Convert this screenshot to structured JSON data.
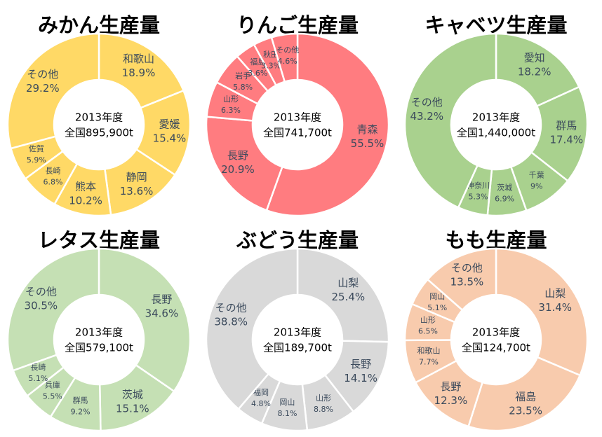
{
  "chart_data": [
    {
      "type": "donut",
      "title": "みかん生産量",
      "center_text": [
        "2013年度",
        "全国895,900t"
      ],
      "color": "#FFD966",
      "slices": [
        {
          "name": "和歌山",
          "value": 18.9,
          "label": "18.9%"
        },
        {
          "name": "愛媛",
          "value": 15.4,
          "label": "15.4%"
        },
        {
          "name": "静岡",
          "value": 13.6,
          "label": "13.6%"
        },
        {
          "name": "熊本",
          "value": 10.2,
          "label": "10.2%"
        },
        {
          "name": "長崎",
          "value": 6.8,
          "label": "6.8%"
        },
        {
          "name": "佐賀",
          "value": 5.9,
          "label": "5.9%"
        },
        {
          "name": "その他",
          "value": 29.2,
          "label": "29.2%"
        }
      ]
    },
    {
      "type": "donut",
      "title": "りんご生産量",
      "center_text": [
        "2013年度",
        "全国741,700t"
      ],
      "color": "#FF7C80",
      "slices": [
        {
          "name": "青森",
          "value": 55.5,
          "label": "55.5%"
        },
        {
          "name": "長野",
          "value": 20.9,
          "label": "20.9%"
        },
        {
          "name": "山形",
          "value": 6.3,
          "label": "6.3%"
        },
        {
          "name": "岩手",
          "value": 5.8,
          "label": "5.8%"
        },
        {
          "name": "福島",
          "value": 3.6,
          "label": "3.6%"
        },
        {
          "name": "秋田",
          "value": 3.3,
          "label": "3.3%"
        },
        {
          "name": "その他",
          "value": 4.6,
          "label": "4.6%"
        }
      ]
    },
    {
      "type": "donut",
      "title": "キャベツ生産量",
      "center_text": [
        "2013年度",
        "全国1,440,000t"
      ],
      "color": "#A9D18E",
      "slices": [
        {
          "name": "愛知",
          "value": 18.2,
          "label": "18.2%"
        },
        {
          "name": "群馬",
          "value": 17.4,
          "label": "17.4%"
        },
        {
          "name": "千葉",
          "value": 9,
          "label": "9%"
        },
        {
          "name": "茨城",
          "value": 6.9,
          "label": "6.9%"
        },
        {
          "name": "神奈川",
          "value": 5.3,
          "label": "5.3%"
        },
        {
          "name": "その他",
          "value": 43.2,
          "label": "43.2%"
        }
      ]
    },
    {
      "type": "donut",
      "title": "レタス生産量",
      "center_text": [
        "2013年度",
        "全国579,100t"
      ],
      "color": "#C5E0B4",
      "slices": [
        {
          "name": "長野",
          "value": 34.6,
          "label": "34.6%"
        },
        {
          "name": "茨城",
          "value": 15.1,
          "label": "15.1%"
        },
        {
          "name": "群馬",
          "value": 9.2,
          "label": "9.2%"
        },
        {
          "name": "兵庫",
          "value": 5.5,
          "label": "5.5%"
        },
        {
          "name": "長崎",
          "value": 5.1,
          "label": "5.1%"
        },
        {
          "name": "その他",
          "value": 30.5,
          "label": "30.5%"
        }
      ]
    },
    {
      "type": "donut",
      "title": "ぶどう生産量",
      "center_text": [
        "2013年度",
        "全国189,700t"
      ],
      "color": "#D9D9D9",
      "slices": [
        {
          "name": "山梨",
          "value": 25.4,
          "label": "25.4%"
        },
        {
          "name": "長野",
          "value": 14.1,
          "label": "14.1%"
        },
        {
          "name": "山形",
          "value": 8.8,
          "label": "8.8%"
        },
        {
          "name": "岡山",
          "value": 8.1,
          "label": "8.1%"
        },
        {
          "name": "福岡",
          "value": 4.8,
          "label": "4.8%"
        },
        {
          "name": "その他",
          "value": 38.8,
          "label": "38.8%"
        }
      ]
    },
    {
      "type": "donut",
      "title": "もも生産量",
      "center_text": [
        "2013年度",
        "全国124,700t"
      ],
      "color": "#F8CBAD",
      "slices": [
        {
          "name": "山梨",
          "value": 31.4,
          "label": "31.4%"
        },
        {
          "name": "福島",
          "value": 23.5,
          "label": "23.5%"
        },
        {
          "name": "長野",
          "value": 12.3,
          "label": "12.3%"
        },
        {
          "name": "和歌山",
          "value": 7.7,
          "label": "7.7%"
        },
        {
          "name": "山形",
          "value": 6.5,
          "label": "6.5%"
        },
        {
          "name": "岡山",
          "value": 5.1,
          "label": "5.1%"
        },
        {
          "name": "その他",
          "value": 13.5,
          "label": "13.5%"
        }
      ]
    }
  ]
}
